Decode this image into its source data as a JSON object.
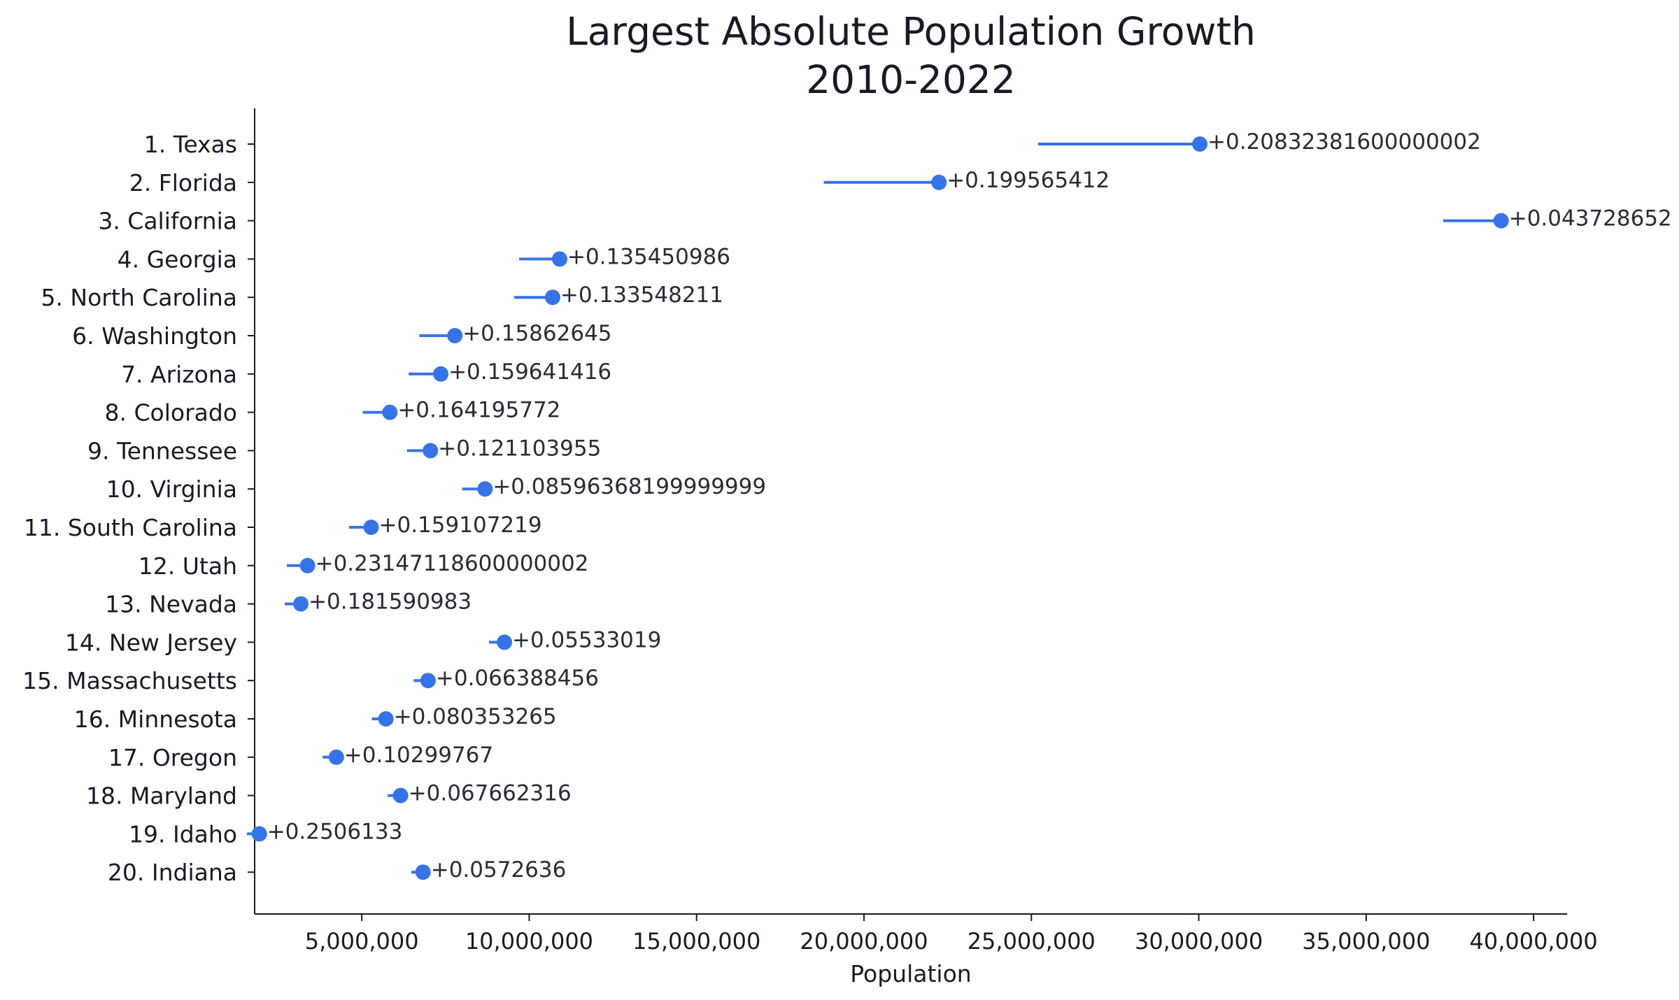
{
  "chart_data": {
    "type": "dot-range",
    "title": "Largest Absolute Population Growth",
    "subtitle": "2010-2022",
    "xlabel": "Population",
    "ylabel": "",
    "xlim": [
      1800000,
      41000000
    ],
    "xticks": [
      5000000,
      10000000,
      15000000,
      20000000,
      25000000,
      30000000,
      35000000,
      40000000
    ],
    "xtick_labels": [
      "5,000,000",
      "10,000,000",
      "15,000,000",
      "20,000,000",
      "25,000,000",
      "30,000,000",
      "35,000,000",
      "40,000,000"
    ],
    "grid": false,
    "series_color": "#3574e8",
    "categories": [
      "1. Texas",
      "2. Florida",
      "3. California",
      "4. Georgia",
      "5. North Carolina",
      "6. Washington",
      "7. Arizona",
      "8. Colorado",
      "9. Tennessee",
      "10. Virginia",
      "11. South Carolina",
      "12. Utah",
      "13. Nevada",
      "14. New Jersey",
      "15. Massachusetts",
      "16. Minnesota",
      "17. Oregon",
      "18. Maryland",
      "19. Idaho",
      "20. Indiana"
    ],
    "start_values": [
      25200000,
      18800000,
      37300000,
      9700000,
      9550000,
      6720000,
      6400000,
      5030000,
      6350000,
      8000000,
      4620000,
      2760000,
      2700000,
      8800000,
      6550000,
      5300000,
      3830000,
      5770000,
      1570000,
      6480000
    ],
    "end_values": [
      30030000,
      22240000,
      39030000,
      10910000,
      10700000,
      7780000,
      7360000,
      5840000,
      7050000,
      8680000,
      5280000,
      3380000,
      3180000,
      9260000,
      6980000,
      5720000,
      4240000,
      6160000,
      1940000,
      6830000
    ],
    "growth_labels": [
      "+0.20832381600000002",
      "+0.199565412",
      "+0.043728652",
      "+0.135450986",
      "+0.133548211",
      "+0.15862645",
      "+0.159641416",
      "+0.164195772",
      "+0.121103955",
      "+0.08596368199999999",
      "+0.159107219",
      "+0.23147118600000002",
      "+0.181590983",
      "+0.05533019",
      "+0.066388456",
      "+0.080353265",
      "+0.10299767",
      "+0.067662316",
      "+0.2506133",
      "+0.0572636"
    ]
  }
}
